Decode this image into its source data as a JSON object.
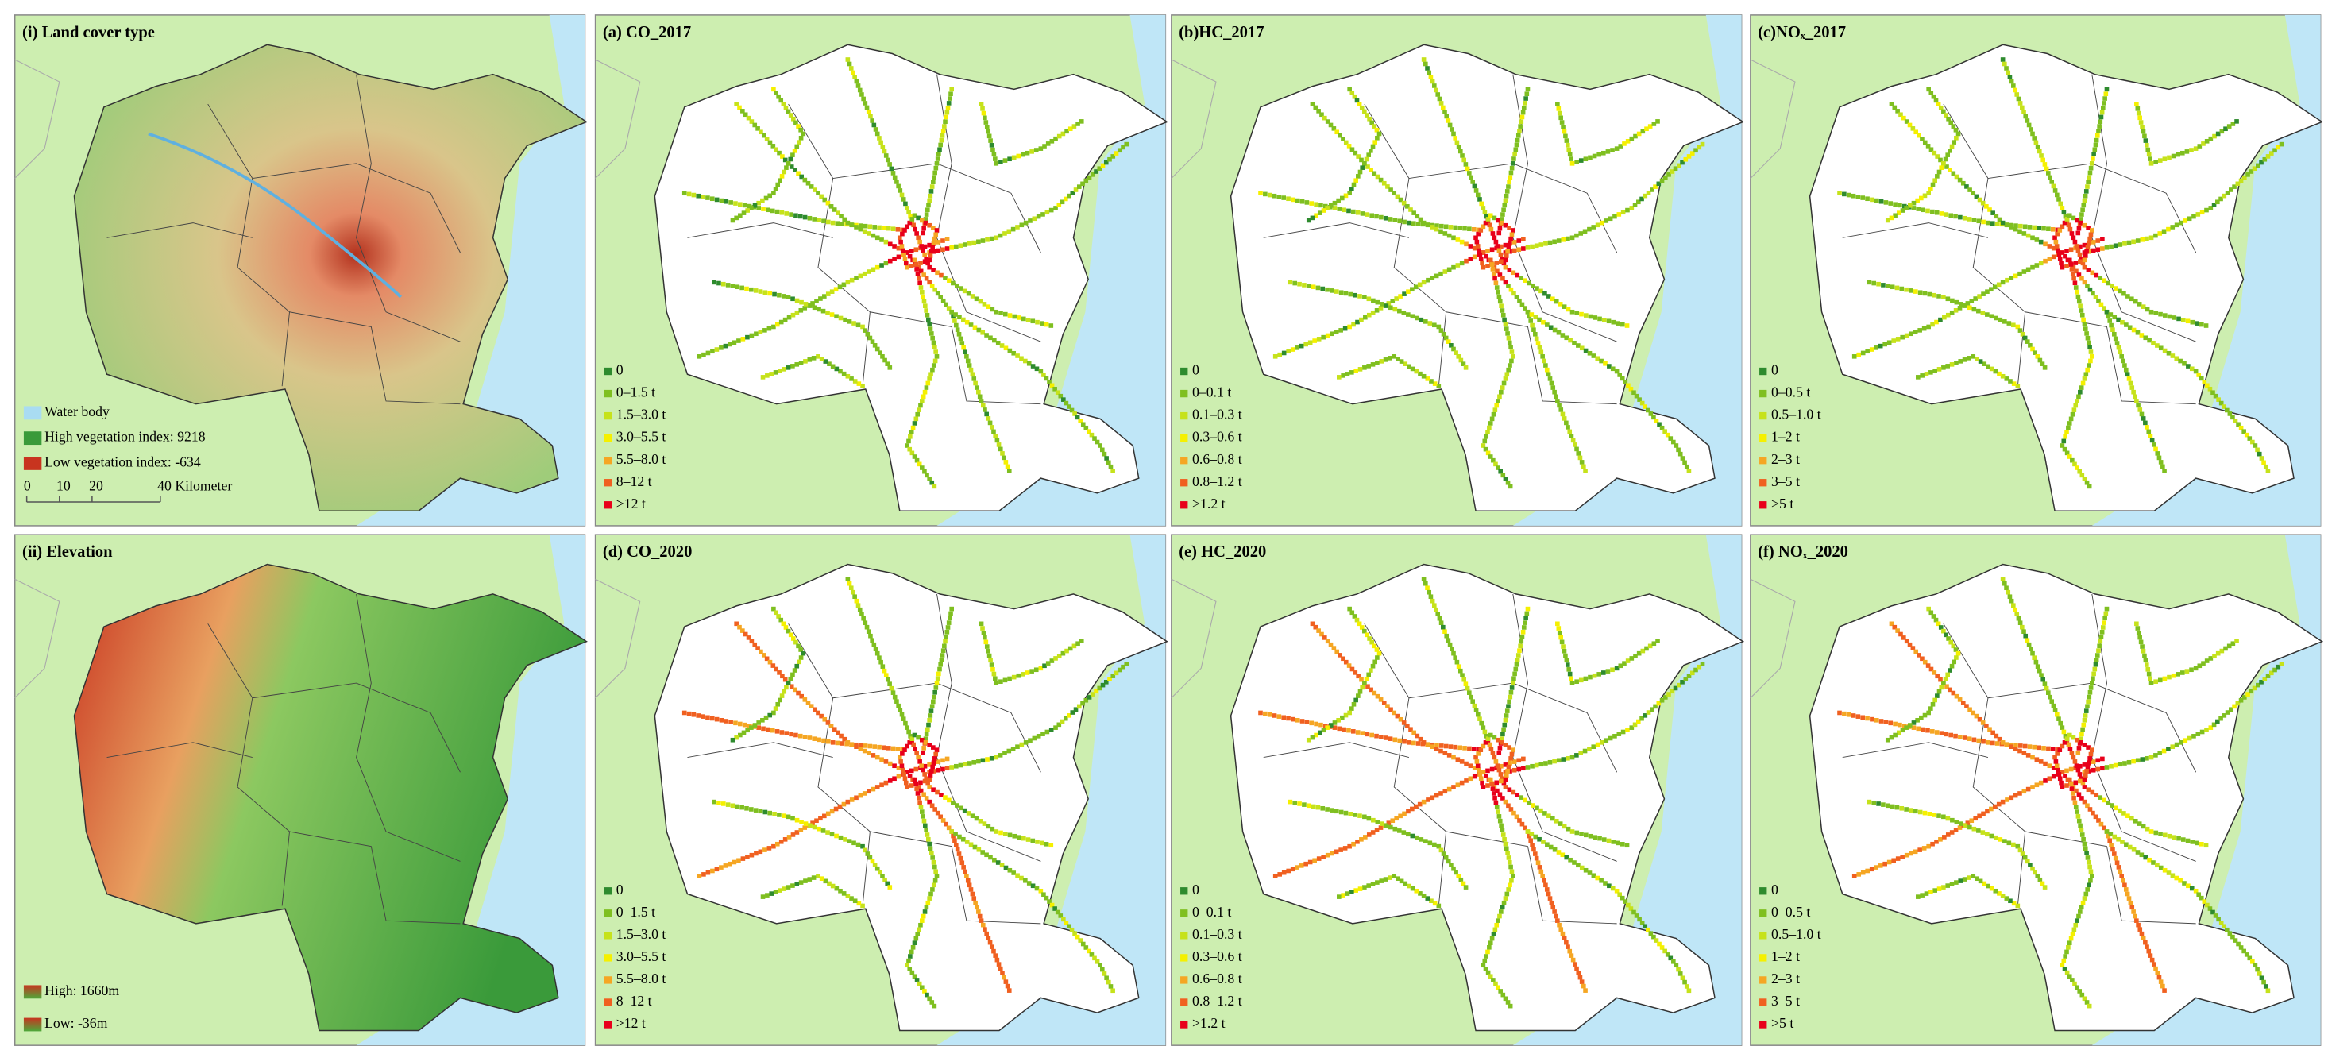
{
  "panels": [
    {
      "title": "(i) Land cover type",
      "kind": "landcover",
      "legend": [
        {
          "label": "Water body",
          "color": "#a9dcf2"
        },
        {
          "label": "High vegetation index: 9218",
          "color": "#3a9a3a"
        },
        {
          "label": "Low vegetation index: -634",
          "color": "#c8341f"
        }
      ],
      "scale_bar": [
        "0",
        "10",
        "20",
        "40 Kilometer"
      ]
    },
    {
      "title": "(a) CO_2017",
      "kind": "emission2017",
      "legend": [
        {
          "label": "0",
          "color": "#2e8b2e"
        },
        {
          "label": "0–1.5 t",
          "color": "#7fbf20"
        },
        {
          "label": "1.5–3.0 t",
          "color": "#c6e21b"
        },
        {
          "label": "3.0–5.5 t",
          "color": "#f5f000"
        },
        {
          "label": "5.5–8.0 t",
          "color": "#f5a623"
        },
        {
          "label": "8–12 t",
          "color": "#f06020"
        },
        {
          "label": ">12 t",
          "color": "#e8001a"
        }
      ]
    },
    {
      "title": "(b)HC_2017",
      "kind": "emission2017",
      "legend": [
        {
          "label": "0",
          "color": "#2e8b2e"
        },
        {
          "label": "0–0.1 t",
          "color": "#7fbf20"
        },
        {
          "label": "0.1–0.3 t",
          "color": "#c6e21b"
        },
        {
          "label": "0.3–0.6 t",
          "color": "#f5f000"
        },
        {
          "label": "0.6–0.8 t",
          "color": "#f5a623"
        },
        {
          "label": "0.8–1.2 t",
          "color": "#f06020"
        },
        {
          "label": ">1.2 t",
          "color": "#e8001a"
        }
      ]
    },
    {
      "title": "(c)NOₓ_2017",
      "kind": "emission2017",
      "legend": [
        {
          "label": "0",
          "color": "#2e8b2e"
        },
        {
          "label": "0–0.5 t",
          "color": "#7fbf20"
        },
        {
          "label": "0.5–1.0 t",
          "color": "#c6e21b"
        },
        {
          "label": "1–2 t",
          "color": "#f5f000"
        },
        {
          "label": "2–3 t",
          "color": "#f5a623"
        },
        {
          "label": "3–5 t",
          "color": "#f06020"
        },
        {
          "label": ">5 t",
          "color": "#e8001a"
        }
      ]
    },
    {
      "title": "(ii) Elevation",
      "kind": "elevation",
      "legend": [
        {
          "label": "High: 1660m",
          "color": "#c8341f"
        },
        {
          "label": "Low: -36m",
          "color": "#4caa3a"
        }
      ]
    },
    {
      "title": "(d) CO_2020",
      "kind": "emission2020",
      "legend": [
        {
          "label": "0",
          "color": "#2e8b2e"
        },
        {
          "label": "0–1.5 t",
          "color": "#7fbf20"
        },
        {
          "label": "1.5–3.0 t",
          "color": "#c6e21b"
        },
        {
          "label": "3.0–5.5 t",
          "color": "#f5f000"
        },
        {
          "label": "5.5–8.0 t",
          "color": "#f5a623"
        },
        {
          "label": "8–12 t",
          "color": "#f06020"
        },
        {
          "label": ">12 t",
          "color": "#e8001a"
        }
      ]
    },
    {
      "title": "(e) HC_2020",
      "kind": "emission2020",
      "legend": [
        {
          "label": "0",
          "color": "#2e8b2e"
        },
        {
          "label": "0–0.1 t",
          "color": "#7fbf20"
        },
        {
          "label": "0.1–0.3 t",
          "color": "#c6e21b"
        },
        {
          "label": "0.3–0.6 t",
          "color": "#f5f000"
        },
        {
          "label": "0.6–0.8 t",
          "color": "#f5a623"
        },
        {
          "label": "0.8–1.2 t",
          "color": "#f06020"
        },
        {
          "label": ">1.2 t",
          "color": "#e8001a"
        }
      ]
    },
    {
      "title": "(f) NOₓ_2020",
      "kind": "emission2020",
      "legend": [
        {
          "label": "0",
          "color": "#2e8b2e"
        },
        {
          "label": "0–0.5 t",
          "color": "#7fbf20"
        },
        {
          "label": "0.5–1.0 t",
          "color": "#c6e21b"
        },
        {
          "label": "1–2 t",
          "color": "#f5f000"
        },
        {
          "label": "2–3 t",
          "color": "#f5a623"
        },
        {
          "label": "3–5 t",
          "color": "#f06020"
        },
        {
          "label": ">5 t",
          "color": "#e8001a"
        }
      ]
    }
  ]
}
